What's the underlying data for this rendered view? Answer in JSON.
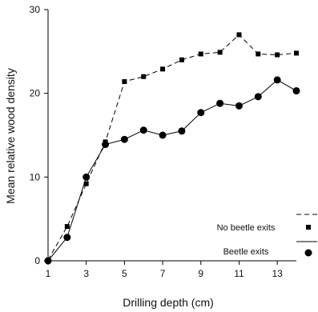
{
  "chart_data": {
    "type": "line",
    "title": "",
    "xlabel": "Drilling depth (cm)",
    "ylabel": "Mean relative wood density",
    "xlim": [
      1,
      14
    ],
    "ylim": [
      0,
      30
    ],
    "x_ticks": [
      1,
      3,
      5,
      7,
      9,
      11,
      13
    ],
    "y_ticks": [
      0,
      10,
      20,
      30
    ],
    "legend_position": "bottom-right",
    "grid": false,
    "x": [
      1,
      2,
      3,
      4,
      5,
      6,
      7,
      8,
      9,
      10,
      11,
      12,
      13,
      14
    ],
    "series": [
      {
        "name": "No beetle exits",
        "style": "dashed",
        "marker": "square",
        "values": [
          0.1,
          4.1,
          9.2,
          14.2,
          21.4,
          22.0,
          22.9,
          24.0,
          24.7,
          24.9,
          27.0,
          24.7,
          24.6,
          24.8
        ]
      },
      {
        "name": "Beetle exits",
        "style": "solid",
        "marker": "circle",
        "values": [
          0.0,
          2.8,
          10.0,
          13.9,
          14.5,
          15.6,
          15.0,
          15.5,
          17.7,
          18.8,
          18.5,
          19.6,
          21.6,
          20.3
        ]
      }
    ]
  }
}
